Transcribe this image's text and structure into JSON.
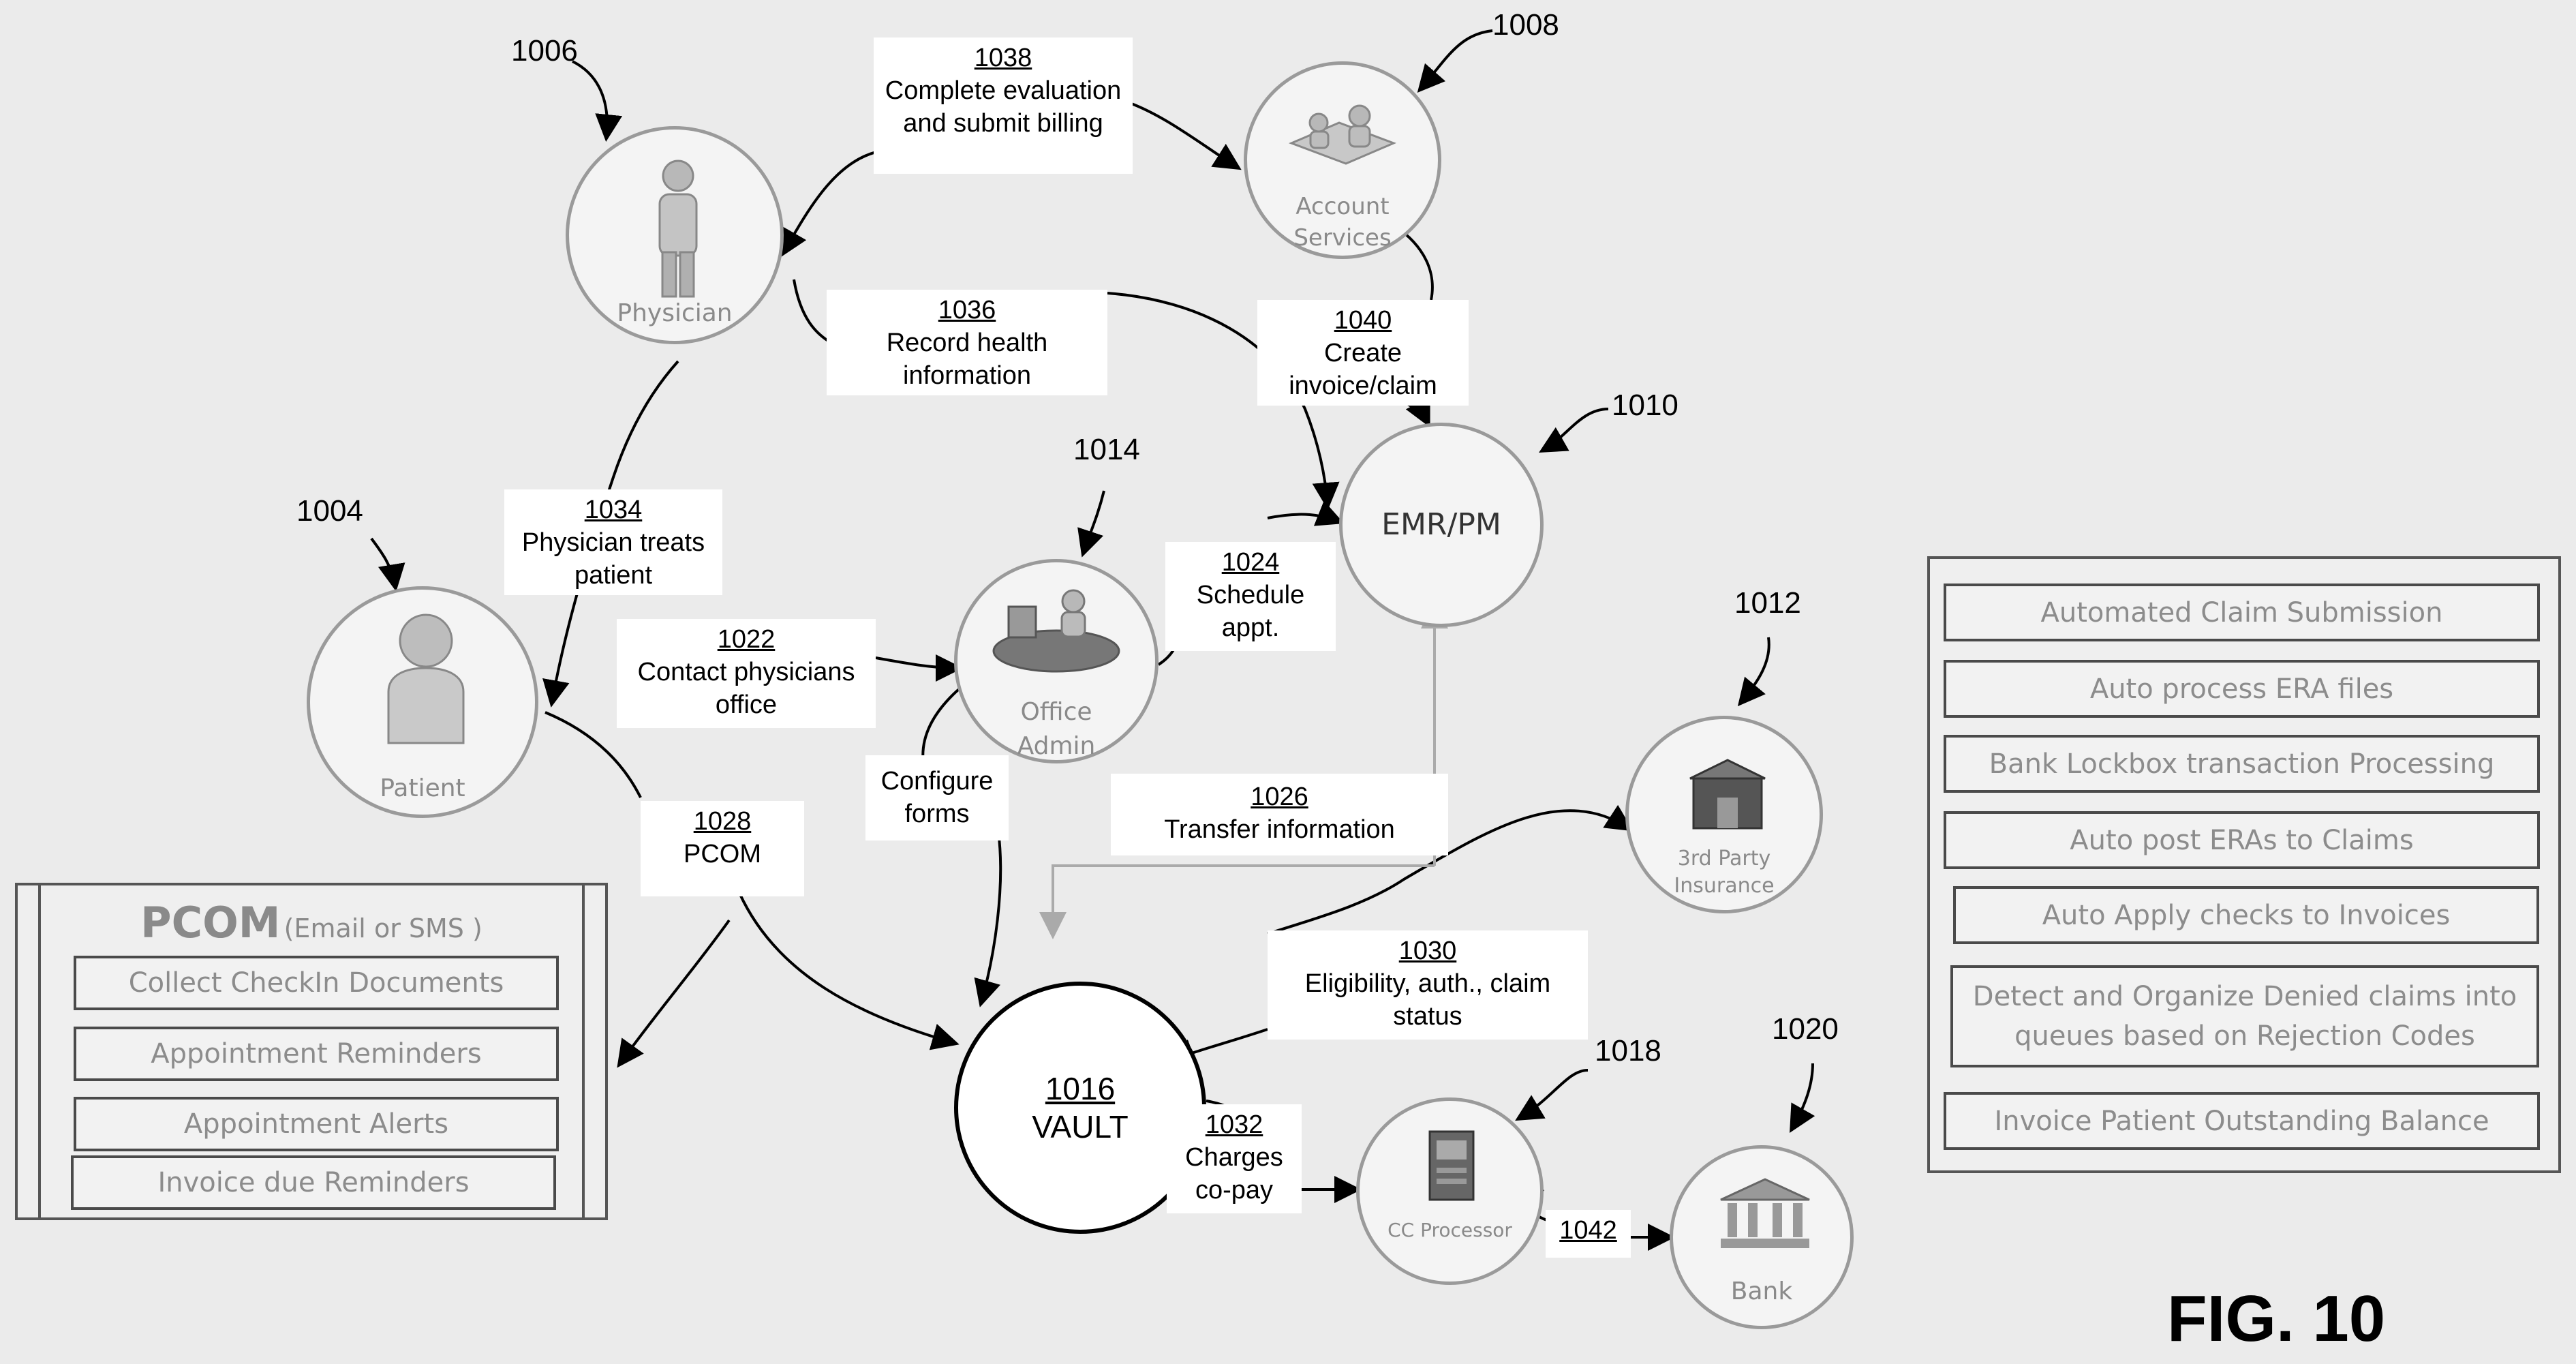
{
  "figure_label": "FIG. 10",
  "refs": {
    "patient": "1004",
    "physician": "1006",
    "account": "1008",
    "emr": "1010",
    "insurance": "1012",
    "office": "1014",
    "cc": "1018",
    "bank": "1020"
  },
  "nodes": {
    "physician": "Physician",
    "account": "Account Services",
    "emr": "EMR/PM",
    "office": "Office Admin",
    "patient": "Patient",
    "insurance": "3rd Party Insurance",
    "vault_num": "1016",
    "vault_name": "VAULT",
    "cc": "CC Processor",
    "bank": "Bank"
  },
  "steps": {
    "s1038": {
      "num": "1038",
      "text": "Complete evaluation and submit billing"
    },
    "s1036": {
      "num": "1036",
      "text": "Record health information"
    },
    "s1040": {
      "num": "1040",
      "text": "Create invoice/claim"
    },
    "s1034": {
      "num": "1034",
      "text": "Physician treats patient"
    },
    "s1024": {
      "num": "1024",
      "text": "Schedule appt."
    },
    "s1022": {
      "num": "1022",
      "text": "Contact physicians office"
    },
    "configure": {
      "text": "Configure forms"
    },
    "s1026": {
      "num": "1026",
      "text": "Transfer information"
    },
    "s1028": {
      "num": "1028",
      "text": "PCOM"
    },
    "s1030": {
      "num": "1030",
      "text": "Eligibility, auth., claim status"
    },
    "s1032": {
      "num": "1032",
      "text": "Charges co-pay"
    },
    "s1042": {
      "num": "1042"
    }
  },
  "pcom": {
    "title": "PCOM",
    "subtitle": "(Email or SMS )",
    "items": [
      "Collect CheckIn Documents",
      "Appointment Reminders",
      "Appointment Alerts",
      "Invoice due Reminders"
    ]
  },
  "automation": {
    "items": [
      "Automated Claim Submission",
      "Auto process ERA files",
      "Bank Lockbox transaction Processing",
      "Auto post ERAs to Claims",
      "Auto Apply checks to Invoices",
      "Detect and Organize Denied claims into queues based on Rejection Codes",
      "Invoice Patient Outstanding Balance"
    ]
  },
  "colors": {
    "background": "#ebebeb",
    "node_border": "#9a9a9a",
    "label_gray": "#8a8a8a"
  }
}
